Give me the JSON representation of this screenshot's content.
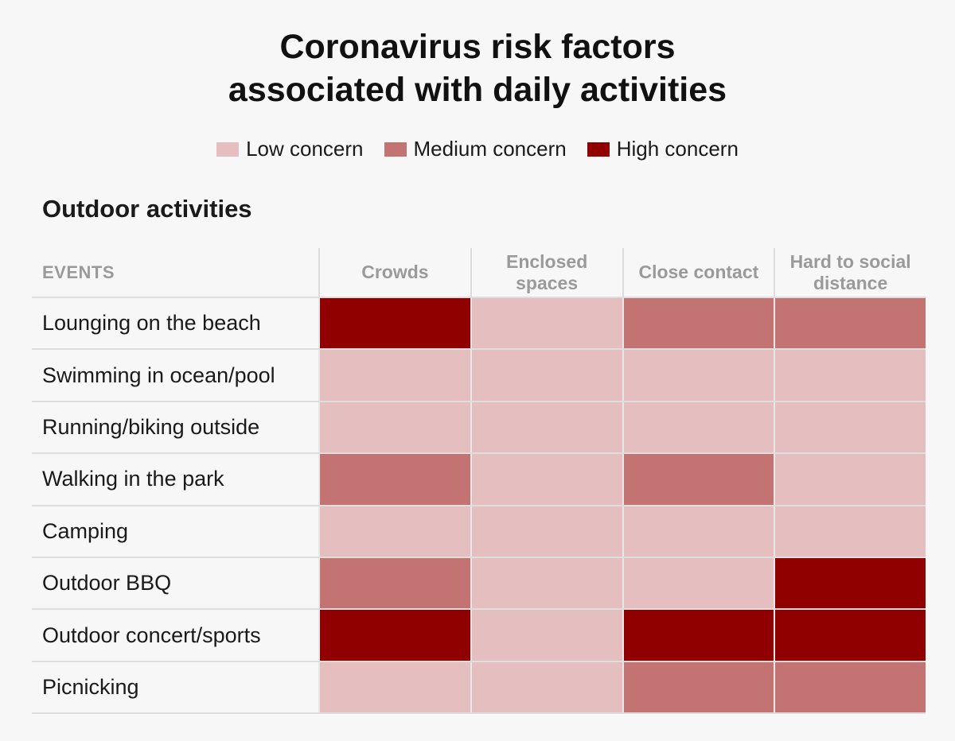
{
  "chart_data": {
    "type": "heatmap",
    "title_lines": [
      "Coronavirus risk factors",
      "associated with daily activities"
    ],
    "subtitle": "Outdoor activities",
    "legend": [
      {
        "label": "Low concern",
        "color": "#e5bfbf"
      },
      {
        "label": "Medium concern",
        "color": "#c37371"
      },
      {
        "label": "High concern",
        "color": "#910000"
      }
    ],
    "row_header": "EVENTS",
    "columns": [
      "Crowds",
      "Enclosed spaces",
      "Close contact",
      "Hard to social distance"
    ],
    "rows": [
      {
        "label": "Lounging on the beach",
        "levels": [
          "High concern",
          "Low concern",
          "Medium concern",
          "Medium concern"
        ]
      },
      {
        "label": "Swimming in ocean/pool",
        "levels": [
          "Low concern",
          "Low concern",
          "Low concern",
          "Low concern"
        ]
      },
      {
        "label": "Running/biking outside",
        "levels": [
          "Low concern",
          "Low concern",
          "Low concern",
          "Low concern"
        ]
      },
      {
        "label": "Walking in the park",
        "levels": [
          "Medium concern",
          "Low concern",
          "Medium concern",
          "Low concern"
        ]
      },
      {
        "label": "Camping",
        "levels": [
          "Low concern",
          "Low concern",
          "Low concern",
          "Low concern"
        ]
      },
      {
        "label": "Outdoor BBQ",
        "levels": [
          "Medium concern",
          "Low concern",
          "Low concern",
          "High concern"
        ]
      },
      {
        "label": "Outdoor concert/sports",
        "levels": [
          "High concern",
          "Low concern",
          "High concern",
          "High concern"
        ]
      },
      {
        "label": "Picnicking",
        "levels": [
          "Low concern",
          "Low concern",
          "Medium concern",
          "Medium concern"
        ]
      }
    ]
  }
}
